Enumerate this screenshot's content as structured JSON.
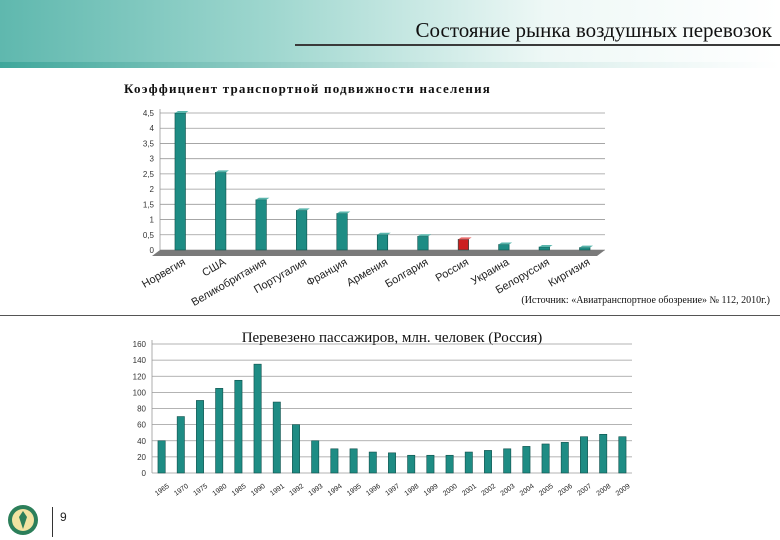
{
  "slide": {
    "title": "Состояние рынка воздушных перевозок",
    "page_number": "9",
    "source": "(Источник: «Авиатранспортное обозрение» № 112, 2010г.)"
  },
  "colors": {
    "bar": "#1e8c84",
    "highlight": "#cc1f1f",
    "grid": "#9a9a9a"
  },
  "chart_data": [
    {
      "type": "bar",
      "title": "Коэффициент транспортной подвижности населения",
      "categories": [
        "Норвегия",
        "США",
        "Великобритания",
        "Португалия",
        "Франция",
        "Армения",
        "Болгария",
        "Россия",
        "Украина",
        "Белоруссия",
        "Киргизия"
      ],
      "values": [
        4.5,
        2.55,
        1.65,
        1.3,
        1.2,
        0.5,
        0.45,
        0.35,
        0.18,
        0.1,
        0.08
      ],
      "highlight": "Россия",
      "ylim": [
        0,
        4.5
      ],
      "yticks": [
        "0",
        "0,5",
        "1",
        "1,5",
        "2",
        "2,5",
        "3",
        "3,5",
        "4",
        "4,5"
      ],
      "grid": true
    },
    {
      "type": "bar",
      "title": "Перевезено пассажиров, млн. человек (Россия)",
      "categories": [
        "1965",
        "1970",
        "1975",
        "1980",
        "1985",
        "1990",
        "1991",
        "1992",
        "1993",
        "1994",
        "1995",
        "1996",
        "1997",
        "1998",
        "1999",
        "2000",
        "2001",
        "2002",
        "2003",
        "2004",
        "2005",
        "2006",
        "2007",
        "2008",
        "2009"
      ],
      "values": [
        40,
        70,
        90,
        105,
        115,
        135,
        88,
        60,
        40,
        30,
        30,
        26,
        25,
        22,
        22,
        22,
        26,
        28,
        30,
        33,
        36,
        38,
        45,
        48,
        45
      ],
      "ylim": [
        0,
        160
      ],
      "yticks": [
        "0",
        "20",
        "40",
        "60",
        "80",
        "100",
        "120",
        "140",
        "160"
      ],
      "grid": true
    }
  ]
}
